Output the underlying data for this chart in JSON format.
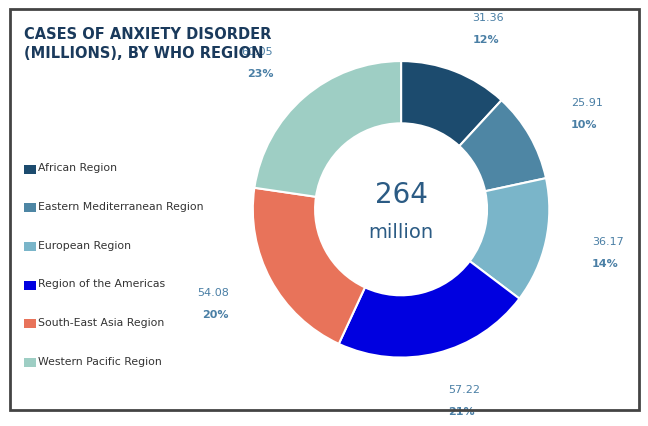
{
  "title": "CASES OF ANXIETY DISORDER\n(MILLIONS), BY WHO REGION",
  "title_fontsize": 10.5,
  "center_text_line1": "264",
  "center_text_line2": "million",
  "labels": [
    "African Region",
    "Eastern Mediterranean Region",
    "European Region",
    "Region of the Americas",
    "South-East Asia Region",
    "Western Pacific Region"
  ],
  "values": [
    31.36,
    25.91,
    36.17,
    57.22,
    54.08,
    60.05
  ],
  "percentages": [
    "12%",
    "10%",
    "14%",
    "21%",
    "20%",
    "23%"
  ],
  "value_labels": [
    "31.36",
    "25.91",
    "36.17",
    "57.22",
    "54.08",
    "60.05"
  ],
  "colors": [
    "#1c4b6e",
    "#4e86a4",
    "#7ab5c9",
    "#0000e0",
    "#e8735a",
    "#9ecec4"
  ],
  "legend_colors": [
    "#1c4b6e",
    "#4e86a4",
    "#7ab5c9",
    "#0000e0",
    "#e8735a",
    "#9ecec4"
  ],
  "background_color": "#ffffff",
  "text_color": "#2b5b84",
  "label_color": "#4a7fa5",
  "border_color": "#444444",
  "title_color": "#1a3a5c"
}
